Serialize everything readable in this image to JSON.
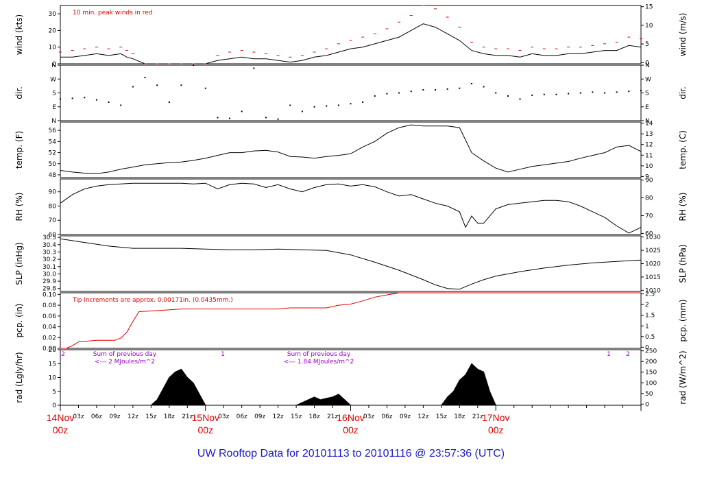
{
  "title": "UW Rooftop Data for 20101113  to  20101116 @ 23:57:36  (UTC)",
  "colors": {
    "line": "#000000",
    "peak": "#dd0000",
    "precip": "#dd0000",
    "note": "#dd0000",
    "rad_note": "#9900cc",
    "title": "#1a1acc",
    "date": "#dd0000"
  },
  "chart_data": [
    {
      "type": "line",
      "panel": "wind",
      "ylabel": "wind (kts)",
      "ylabel_right": "wind (m/s)",
      "ylim": [
        0,
        35
      ],
      "yticks": [
        "0",
        "10",
        "20",
        "30"
      ],
      "yticks_right": [
        "0",
        "5",
        "10",
        "15"
      ],
      "annotation": "10 min. peak winds in red",
      "series": [
        {
          "x": [
            0,
            2,
            4,
            6,
            8,
            10,
            11,
            12,
            14,
            16,
            18,
            20,
            22,
            24,
            26,
            28,
            30,
            32,
            34,
            36,
            38,
            40,
            42,
            44,
            46,
            48,
            50,
            52,
            54,
            56,
            58,
            60,
            62,
            64,
            66,
            68,
            70,
            72,
            74,
            76,
            78,
            80,
            82,
            84,
            86,
            88,
            90,
            92,
            94,
            96
          ],
          "values": [
            4,
            4,
            5,
            6,
            5,
            6,
            4,
            3,
            0,
            0,
            0,
            0,
            0,
            0,
            2,
            3,
            4,
            3,
            3,
            2,
            1,
            2,
            4,
            5,
            7,
            9,
            10,
            12,
            14,
            16,
            20,
            24,
            22,
            18,
            14,
            8,
            6,
            5,
            5,
            4,
            6,
            5,
            5,
            6,
            6,
            7,
            8,
            8,
            11,
            10
          ]
        },
        {
          "name": "10 min. peak winds in red",
          "x": [
            0,
            2,
            4,
            6,
            8,
            10,
            11,
            12,
            14,
            16,
            18,
            20,
            22,
            24,
            26,
            28,
            30,
            32,
            34,
            36,
            38,
            40,
            42,
            44,
            46,
            48,
            50,
            52,
            54,
            56,
            58,
            60,
            62,
            64,
            66,
            68,
            70,
            72,
            74,
            76,
            78,
            80,
            82,
            84,
            86,
            88,
            90,
            92,
            94,
            96
          ],
          "values": [
            7,
            8,
            9,
            10,
            9,
            10,
            8,
            6,
            0,
            0,
            0,
            0,
            0,
            0,
            5,
            7,
            8,
            7,
            6,
            5,
            4,
            5,
            7,
            9,
            12,
            14,
            16,
            18,
            21,
            25,
            29,
            35,
            33,
            28,
            22,
            13,
            10,
            9,
            9,
            8,
            10,
            9,
            9,
            10,
            10,
            11,
            12,
            13,
            16,
            15
          ]
        }
      ]
    },
    {
      "type": "scatter",
      "panel": "dir",
      "ylabel": "dir.",
      "ylabel_right": "dir.",
      "yticks": [
        "N",
        "E",
        "S",
        "W",
        "N"
      ],
      "yticks_right": [
        "N",
        "E",
        "S",
        "W",
        "N"
      ],
      "ylim": [
        0,
        360
      ],
      "x": [
        0,
        2,
        4,
        6,
        8,
        10,
        12,
        14,
        16,
        18,
        20,
        22,
        24,
        26,
        28,
        30,
        32,
        34,
        36,
        38,
        40,
        42,
        44,
        46,
        48,
        50,
        52,
        54,
        56,
        58,
        60,
        62,
        64,
        66,
        68,
        70,
        72,
        74,
        76,
        78,
        80,
        82,
        84,
        86,
        88,
        90,
        92,
        94,
        96
      ],
      "values": [
        140,
        145,
        150,
        135,
        120,
        100,
        220,
        280,
        230,
        120,
        230,
        360,
        210,
        20,
        15,
        60,
        340,
        20,
        10,
        100,
        60,
        90,
        95,
        100,
        110,
        120,
        160,
        175,
        180,
        190,
        200,
        200,
        205,
        210,
        240,
        220,
        180,
        160,
        140,
        165,
        170,
        170,
        175,
        180,
        185,
        180,
        185,
        190,
        195
      ]
    },
    {
      "type": "line",
      "panel": "temp",
      "ylabel": "temp. (F)",
      "ylabel_right": "temp. (C)",
      "ylim": [
        47.5,
        57.5
      ],
      "yticks": [
        "48",
        "50",
        "52",
        "54",
        "56"
      ],
      "yticks_right": [
        "9",
        "10",
        "11",
        "12",
        "13",
        "14"
      ],
      "x": [
        0,
        2,
        4,
        6,
        8,
        10,
        12,
        14,
        16,
        18,
        20,
        22,
        24,
        26,
        28,
        30,
        32,
        34,
        36,
        38,
        40,
        42,
        44,
        46,
        48,
        50,
        52,
        54,
        56,
        58,
        60,
        62,
        64,
        66,
        68,
        70,
        72,
        74,
        76,
        78,
        80,
        82,
        84,
        86,
        88,
        90,
        92,
        94,
        96
      ],
      "values": [
        48.8,
        48.5,
        48.3,
        48.2,
        48.5,
        49.0,
        49.4,
        49.8,
        50.0,
        50.2,
        50.3,
        50.6,
        51.0,
        51.5,
        52.0,
        52.0,
        52.3,
        52.4,
        52.1,
        51.3,
        51.2,
        51.0,
        51.3,
        51.5,
        51.8,
        53.0,
        54.0,
        55.5,
        56.5,
        57.0,
        56.8,
        56.8,
        56.8,
        56.5,
        52.0,
        50.5,
        49.2,
        48.5,
        49.0,
        49.5,
        49.8,
        50.1,
        50.4,
        51.0,
        51.5,
        52.0,
        53.0,
        53.3,
        52.2
      ]
    },
    {
      "type": "line",
      "panel": "rh",
      "ylabel": "RH (%)",
      "ylabel_right": "RH (%)",
      "ylim": [
        60,
        99
      ],
      "yticks": [
        "60",
        "70",
        "80",
        "90"
      ],
      "yticks_right": [
        "60",
        "70",
        "80",
        "90"
      ],
      "x": [
        0,
        2,
        4,
        6,
        8,
        10,
        12,
        14,
        16,
        18,
        20,
        22,
        24,
        26,
        28,
        30,
        32,
        34,
        36,
        38,
        40,
        42,
        44,
        46,
        48,
        50,
        52,
        54,
        56,
        58,
        60,
        62,
        64,
        66,
        67,
        68,
        69,
        70,
        72,
        74,
        76,
        78,
        80,
        82,
        84,
        86,
        88,
        90,
        92,
        94,
        96
      ],
      "values": [
        82,
        88,
        92,
        94,
        95,
        95.5,
        96,
        96,
        96,
        96,
        96,
        95.5,
        96,
        92,
        95,
        96,
        95.5,
        93,
        95,
        92,
        90,
        93,
        95,
        95.5,
        94,
        95,
        93.5,
        90,
        87,
        88,
        85,
        82,
        80,
        76,
        65,
        73,
        68,
        68,
        78,
        81,
        82,
        83,
        84,
        84,
        83,
        80,
        76,
        72,
        66,
        61,
        65
      ]
    },
    {
      "type": "line",
      "panel": "slp",
      "ylabel": "SLP (inHg)",
      "ylabel_right": "SLP (hPa)",
      "ylim": [
        29.76,
        30.52
      ],
      "yticks": [
        "29.8",
        "29.9",
        "30.0",
        "30.1",
        "30.2",
        "30.3",
        "30.4",
        "30.5"
      ],
      "yticks_right": [
        "1010",
        "1015",
        "1020",
        "1025",
        "1030"
      ],
      "x": [
        0,
        4,
        8,
        12,
        16,
        20,
        24,
        28,
        32,
        36,
        40,
        44,
        48,
        52,
        56,
        60,
        62,
        64,
        66,
        68,
        70,
        72,
        76,
        80,
        84,
        88,
        92,
        96
      ],
      "values": [
        30.48,
        30.43,
        30.38,
        30.35,
        30.35,
        30.35,
        30.34,
        30.33,
        30.33,
        30.34,
        30.33,
        30.32,
        30.26,
        30.16,
        30.05,
        29.92,
        29.85,
        29.8,
        29.79,
        29.86,
        29.92,
        29.97,
        30.03,
        30.08,
        30.12,
        30.15,
        30.17,
        30.19
      ]
    },
    {
      "type": "line",
      "panel": "pcp",
      "ylabel": "pcp. (in)",
      "ylabel_right": "pcp. (mm)",
      "ylim": [
        0,
        0.103
      ],
      "yticks": [
        "0.00",
        "0.02",
        "0.04",
        "0.06",
        "0.08",
        "0.10"
      ],
      "yticks_right": [
        "0",
        "0.5",
        "1",
        "1.5",
        "2",
        "2.5"
      ],
      "annotation": "Tip increments are approx. 0.00171in. (0.0435mm.)",
      "x": [
        0,
        1,
        2,
        3,
        6,
        9,
        10,
        11,
        12,
        13,
        16,
        20,
        24,
        28,
        32,
        36,
        38,
        40,
        42,
        44,
        46,
        48,
        50,
        52,
        54,
        56,
        60,
        66,
        72,
        80,
        88,
        96
      ],
      "values": [
        0,
        0,
        0.005,
        0.012,
        0.015,
        0.015,
        0.019,
        0.03,
        0.05,
        0.068,
        0.07,
        0.073,
        0.073,
        0.073,
        0.073,
        0.073,
        0.075,
        0.075,
        0.075,
        0.075,
        0.08,
        0.082,
        0.088,
        0.095,
        0.099,
        0.103,
        0.103,
        0.103,
        0.103,
        0.103,
        0.103,
        0.103
      ]
    },
    {
      "type": "area",
      "panel": "rad",
      "ylabel": "rad (Lgly/hr)",
      "ylabel_right": "rad (W/m^2)",
      "ylim": [
        0,
        20
      ],
      "yticks": [
        "0",
        "5",
        "10",
        "15",
        "20"
      ],
      "yticks_right": [
        "0",
        "50",
        "100",
        "150",
        "200",
        "250"
      ],
      "annotations": [
        {
          "text": "Sum of previous day",
          "sub": "<--- 2 MJoules/m^2"
        },
        {
          "text": "Sum of previous day",
          "sub": "<--- 1.84 MJoules/m^2"
        }
      ],
      "day_markers": [
        {
          "text": "2"
        },
        {
          "text": "1"
        },
        {
          "text": "1"
        },
        {
          "text": "2"
        }
      ],
      "x": [
        0,
        15,
        16,
        17,
        18,
        19,
        20,
        21,
        22,
        23,
        24,
        39,
        40,
        41,
        42,
        43,
        44,
        45,
        46,
        47,
        48,
        63,
        64,
        65,
        66,
        67,
        68,
        69,
        70,
        71,
        72
      ],
      "values": [
        0,
        0,
        2,
        6,
        10,
        12,
        13,
        10,
        8,
        4,
        0,
        0,
        1,
        2,
        3,
        2,
        2.5,
        3,
        4,
        2,
        0,
        0,
        3,
        5,
        9,
        11,
        15,
        13,
        12,
        5,
        0
      ]
    }
  ],
  "x_axis": {
    "ticks": [
      "03z",
      "06z",
      "09z",
      "12z",
      "15z",
      "18z",
      "21z",
      "03z",
      "06z",
      "09z",
      "12z",
      "15z",
      "18z",
      "21z",
      "03z",
      "06z",
      "09z",
      "12z",
      "15z",
      "18z",
      "21z"
    ],
    "days": [
      {
        "top": "14Nov",
        "bottom": "00z"
      },
      {
        "top": "15Nov",
        "bottom": "00z"
      },
      {
        "top": "16Nov",
        "bottom": "00z"
      },
      {
        "top": "17Nov",
        "bottom": "00z"
      }
    ]
  }
}
